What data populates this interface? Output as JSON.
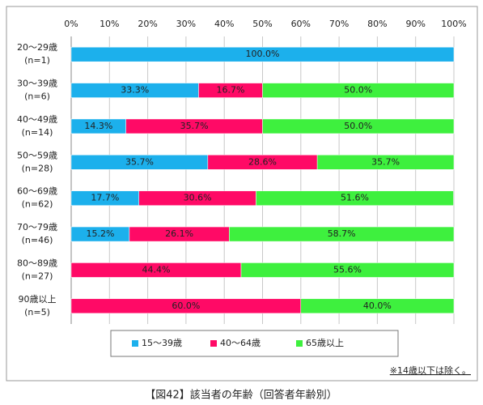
{
  "chart_data": {
    "type": "stacked-bar-horizontal",
    "categories": [
      "20～29歳",
      "30～39歳",
      "40～49歳",
      "50～59歳",
      "60～69歳",
      "70～79歳",
      "80～89歳",
      "90歳以上"
    ],
    "category_notes": [
      "(n=1)",
      "(n=6)",
      "(n=14)",
      "(n=28)",
      "(n=62)",
      "(n=46)",
      "(n=27)",
      "(n=5)"
    ],
    "series": [
      {
        "name": "15～39歳",
        "color": "#1cb0ec",
        "values": [
          100.0,
          33.3,
          14.3,
          35.7,
          17.7,
          15.2,
          null,
          null
        ],
        "value_labels": [
          "100.0%",
          "33.3%",
          "14.3%",
          "35.7%",
          "17.7%",
          "15.2%",
          null,
          null
        ]
      },
      {
        "name": "40～64歳",
        "color": "#ff0a66",
        "values": [
          null,
          16.7,
          35.7,
          28.6,
          30.6,
          26.1,
          44.4,
          60.0
        ],
        "value_labels": [
          null,
          "16.7%",
          "35.7%",
          "28.6%",
          "30.6%",
          "26.1%",
          "44.4%",
          "60.0%"
        ]
      },
      {
        "name": "65歳以上",
        "color": "#3ef03e",
        "values": [
          null,
          50.0,
          50.0,
          35.7,
          51.6,
          58.7,
          55.6,
          40.0
        ],
        "value_labels": [
          null,
          "50.0%",
          "50.0%",
          "35.7%",
          "51.6%",
          "58.7%",
          "55.6%",
          "40.0%"
        ]
      }
    ],
    "xlim": [
      0,
      100
    ],
    "xticks": [
      {
        "value": 0,
        "label": "0%"
      },
      {
        "value": 10,
        "label": "10%"
      },
      {
        "value": 20,
        "label": "20%"
      },
      {
        "value": 30,
        "label": "30%"
      },
      {
        "value": 40,
        "label": "40%"
      },
      {
        "value": 50,
        "label": "50%"
      },
      {
        "value": 60,
        "label": "60%"
      },
      {
        "value": 70,
        "label": "70%"
      },
      {
        "value": 80,
        "label": "80%"
      },
      {
        "value": 90,
        "label": "90%"
      },
      {
        "value": 100,
        "label": "100%"
      }
    ],
    "grid": true,
    "legend": "bottom",
    "footnote": "※14歳以下は除く。",
    "caption": "【図42】該当者の年齢（回答者年齢別）"
  }
}
